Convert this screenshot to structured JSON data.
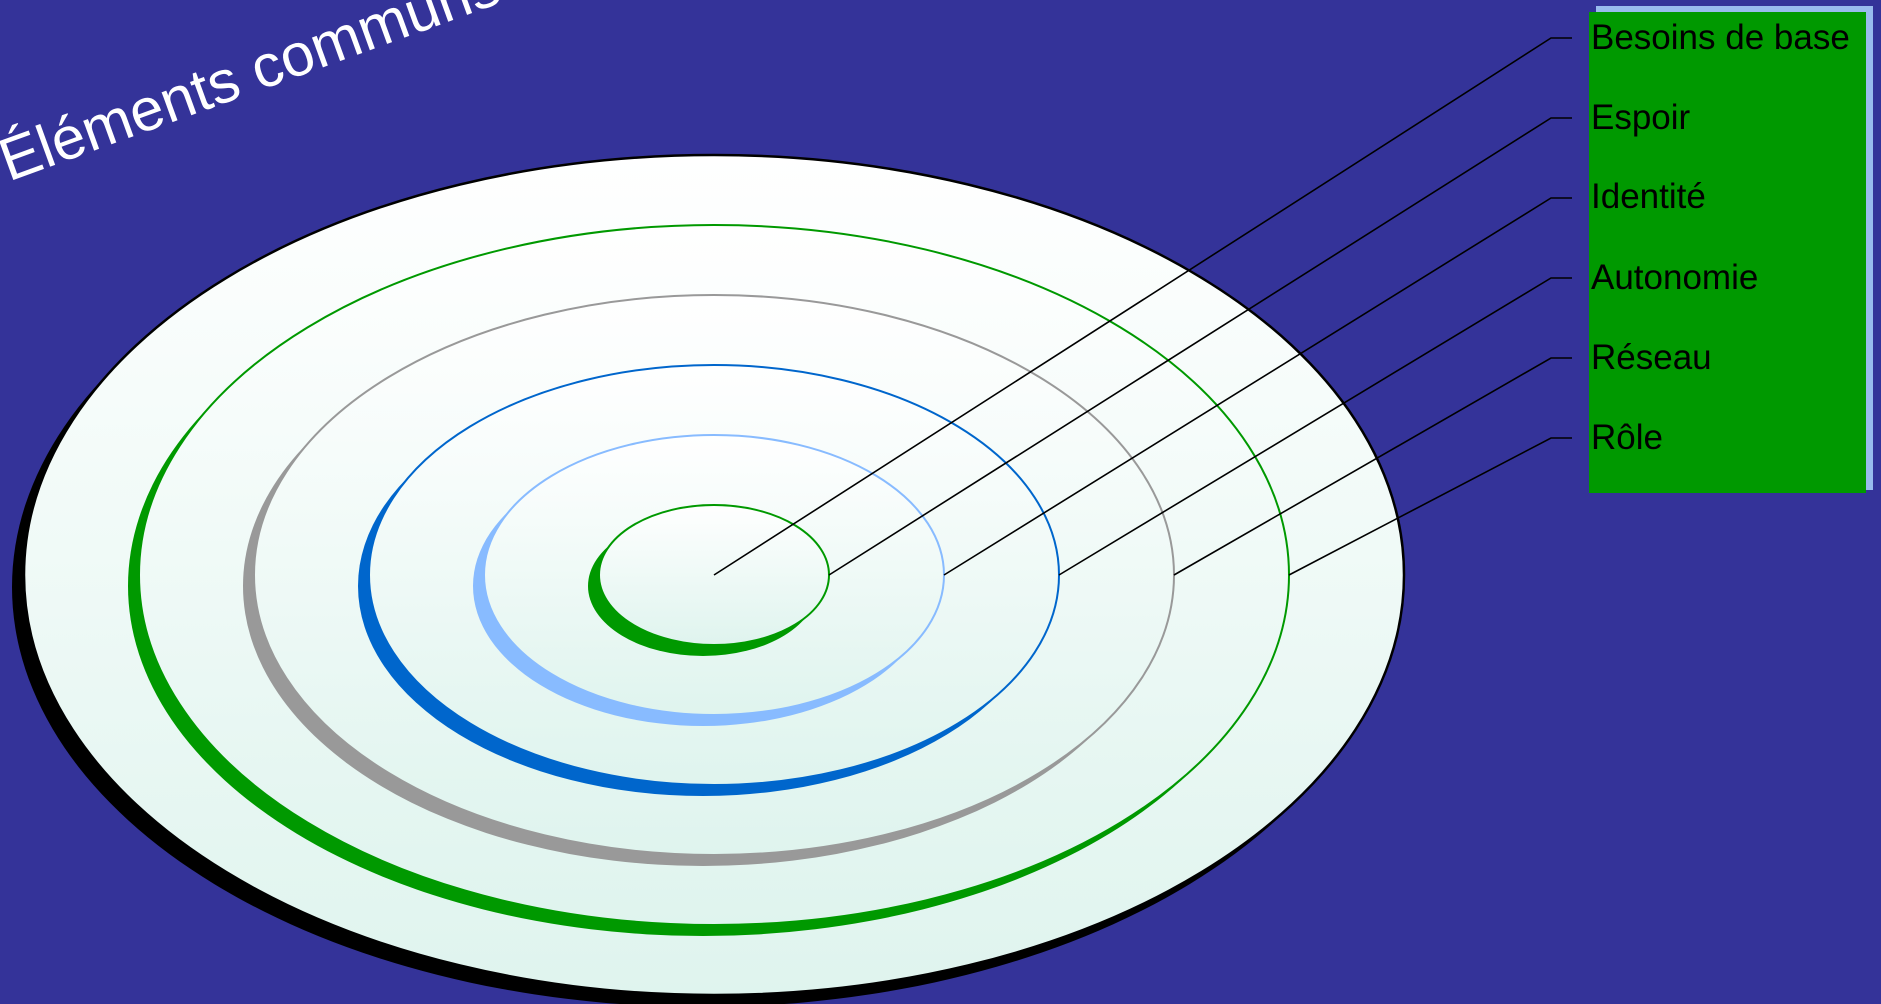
{
  "diagram": {
    "title": "Éléments communs",
    "layers": [
      {
        "label": "Besoins de base",
        "ring_color": "#009900"
      },
      {
        "label": "Espoir",
        "ring_color": "#88bbff"
      },
      {
        "label": "Identité",
        "ring_color": "#0066cc"
      },
      {
        "label": "Autonomie",
        "ring_color": "#999999"
      },
      {
        "label": "Réseau",
        "ring_color": "#009900"
      },
      {
        "label": "Rôle",
        "ring_color": "#000000"
      }
    ]
  },
  "colors": {
    "background": "#343399",
    "legend_panel": "#009900",
    "legend_shadow": "#99bbee",
    "disc_fill_light": "#ffffff",
    "disc_fill_dark": "#dff4ee",
    "leader_lines": "#000000"
  }
}
